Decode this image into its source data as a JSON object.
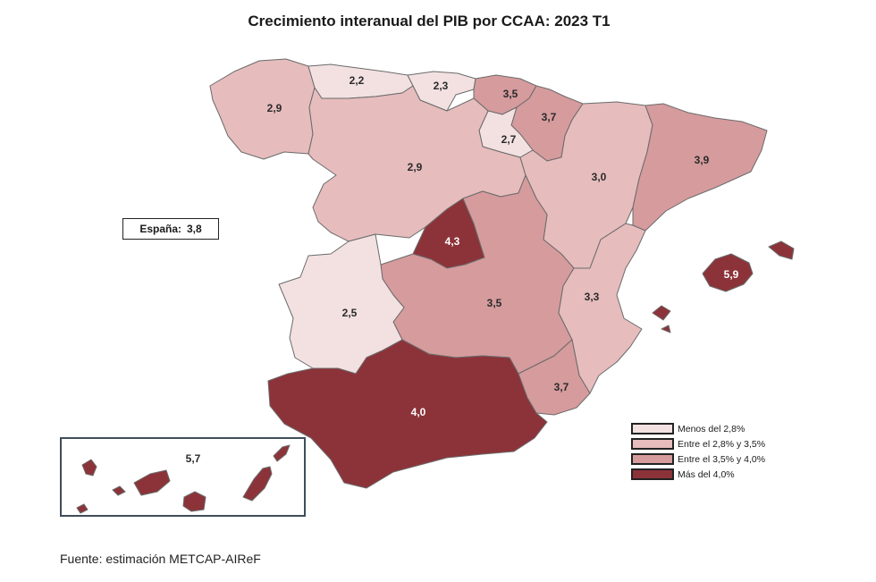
{
  "title": "Crecimiento interanual del PIB por CCAA: 2023 T1",
  "national": {
    "label": "España:",
    "value": "3,8"
  },
  "colors": {
    "menos_2_8": "#f3e1e2",
    "entre_2_8_3_5": "#e6bcbd",
    "entre_3_5_4_0": "#d69b9d",
    "mas_4_0": "#8c3339"
  },
  "regions": {
    "galicia": "2,9",
    "asturias": "2,2",
    "cantabria": "2,3",
    "pais_vasco": "3,5",
    "navarra": "3,7",
    "la_rioja": "2,7",
    "castilla_y_leon": "2,9",
    "aragon": "3,0",
    "cataluna": "3,9",
    "madrid": "4,3",
    "castilla_la_mancha": "3,5",
    "comunidad_valenciana": "3,3",
    "extremadura": "2,5",
    "murcia": "3,7",
    "andalucia": "4,0",
    "baleares": "5,9",
    "canarias": "5,7"
  },
  "legend": [
    {
      "label": "Menos del 2,8%",
      "color": "#f3e1e2"
    },
    {
      "label": "Entre el 2,8% y 3,5%",
      "color": "#e6bcbd"
    },
    {
      "label": "Entre el 3,5% y 4,0%",
      "color": "#d69b9d"
    },
    {
      "label": "Más del 4,0%",
      "color": "#8c3339"
    }
  ],
  "source": "Fuente: estimación METCAP-AIReF"
}
